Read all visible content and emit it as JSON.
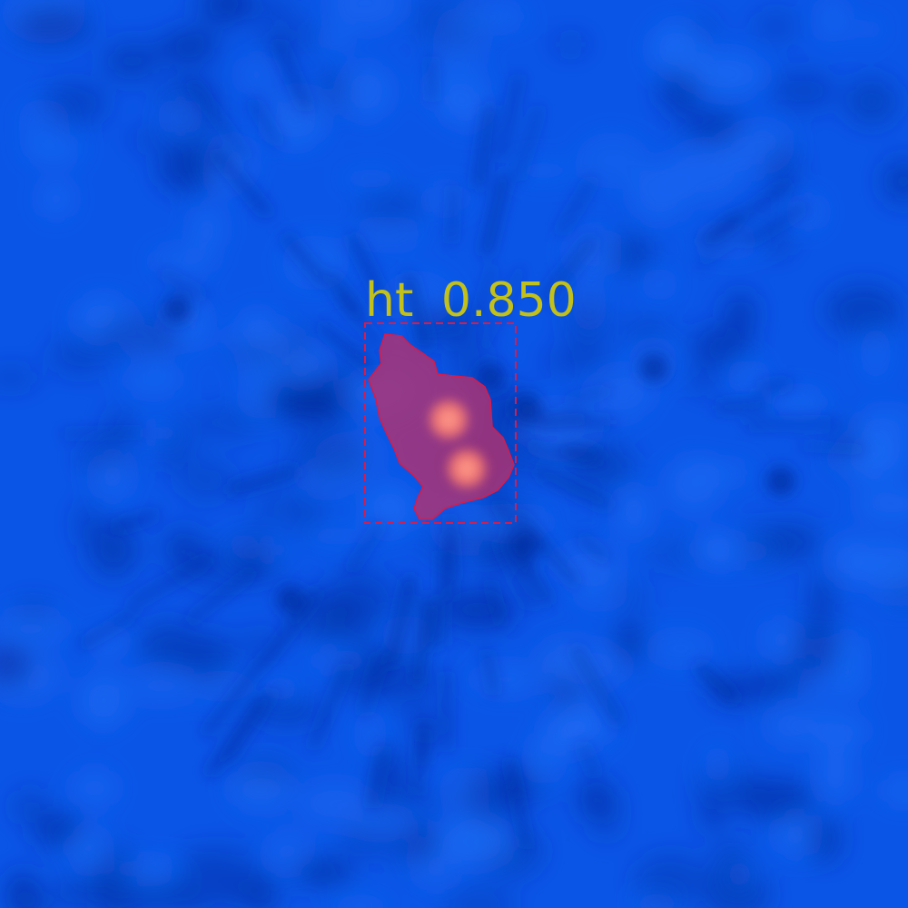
{
  "detection": {
    "class_label": "ht",
    "score": "0.850",
    "label_color": "#c2c01a",
    "box_color": "#d81b4a",
    "mask_color": "#c2306a"
  },
  "background": {
    "base_color": "#0a55e6",
    "dark_color": "#022a9a",
    "light_color": "#1e6cf5"
  },
  "blob": {
    "core_color": "#ff8a7a"
  }
}
